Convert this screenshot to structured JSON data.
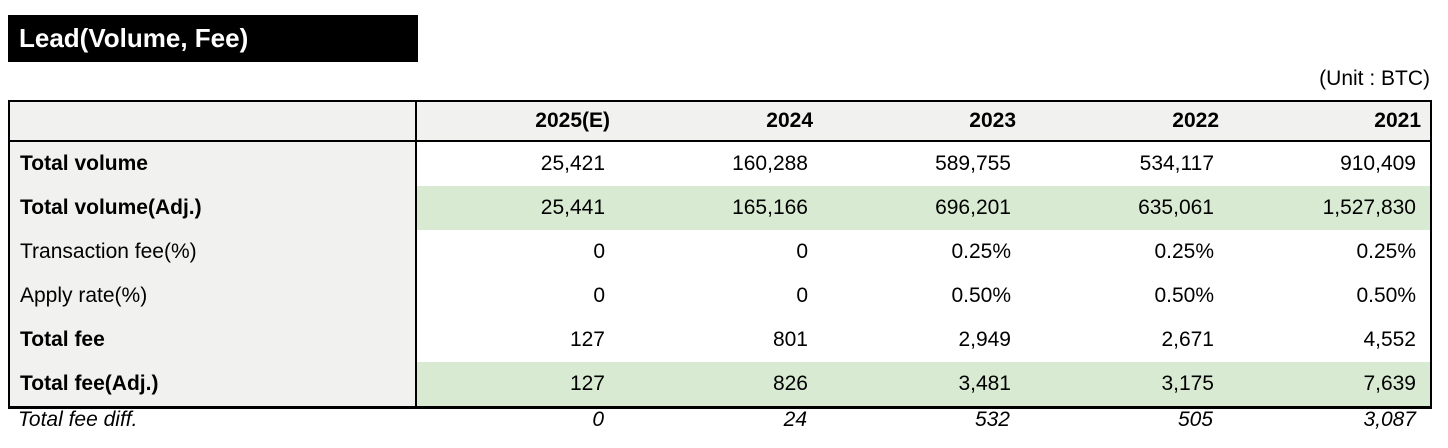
{
  "title": "Lead(Volume, Fee)",
  "unit_label": "(Unit : BTC)",
  "colors": {
    "highlight_green": "#d9ead3",
    "header_gray": "#f1f1ef",
    "title_bg": "#000000",
    "title_text": "#ffffff",
    "border": "#000000"
  },
  "table": {
    "columns": [
      "",
      "2025(E)",
      "2024",
      "2023",
      "2022",
      "2021"
    ],
    "rows": [
      {
        "label": "Total volume",
        "bold": true,
        "highlight": false,
        "values": [
          "25,421",
          "160,288",
          "589,755",
          "534,117",
          "910,409"
        ]
      },
      {
        "label": "Total volume(Adj.)",
        "bold": true,
        "highlight": true,
        "values": [
          "25,441",
          "165,166",
          "696,201",
          "635,061",
          "1,527,830"
        ]
      },
      {
        "label": "Transaction fee(%)",
        "bold": false,
        "highlight": false,
        "values": [
          "0",
          "0",
          "0.25%",
          "0.25%",
          "0.25%"
        ]
      },
      {
        "label": "Apply rate(%)",
        "bold": false,
        "highlight": false,
        "values": [
          "0",
          "0",
          "0.50%",
          "0.50%",
          "0.50%"
        ]
      },
      {
        "label": "Total fee",
        "bold": true,
        "highlight": false,
        "values": [
          "127",
          "801",
          "2,949",
          "2,671",
          "4,552"
        ]
      },
      {
        "label": "Total fee(Adj.)",
        "bold": true,
        "highlight": true,
        "values": [
          "127",
          "826",
          "3,481",
          "3,175",
          "7,639"
        ]
      }
    ],
    "footer": {
      "label": "Total fee diff.",
      "values": [
        "0",
        "24",
        "532",
        "505",
        "3,087"
      ]
    }
  },
  "chart_data": {
    "type": "table",
    "title": "Lead(Volume, Fee)",
    "unit": "BTC",
    "columns": [
      "2025(E)",
      "2024",
      "2023",
      "2022",
      "2021"
    ],
    "rows": [
      {
        "label": "Total volume",
        "values": [
          25421,
          160288,
          589755,
          534117,
          910409
        ]
      },
      {
        "label": "Total volume(Adj.)",
        "values": [
          25441,
          165166,
          696201,
          635061,
          1527830
        ]
      },
      {
        "label": "Transaction fee(%)",
        "values": [
          "0",
          "0",
          "0.25%",
          "0.25%",
          "0.25%"
        ]
      },
      {
        "label": "Apply rate(%)",
        "values": [
          "0",
          "0",
          "0.50%",
          "0.50%",
          "0.50%"
        ]
      },
      {
        "label": "Total fee",
        "values": [
          127,
          801,
          2949,
          2671,
          4552
        ]
      },
      {
        "label": "Total fee(Adj.)",
        "values": [
          127,
          826,
          3481,
          3175,
          7639
        ]
      },
      {
        "label": "Total fee diff.",
        "values": [
          0,
          24,
          532,
          505,
          3087
        ]
      }
    ],
    "highlighted_rows": [
      "Total volume(Adj.)",
      "Total fee(Adj.)"
    ]
  }
}
